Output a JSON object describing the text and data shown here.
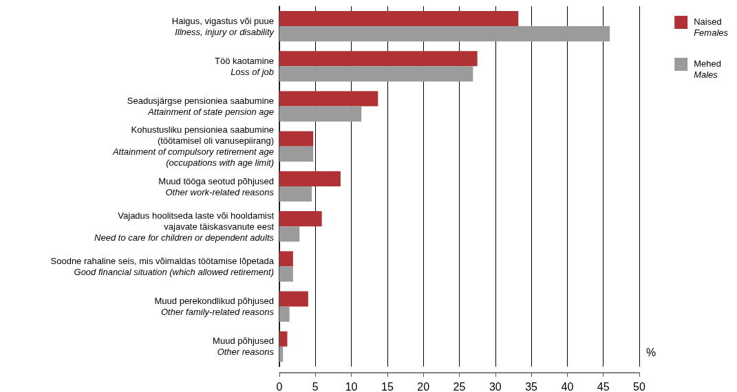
{
  "chart_data": {
    "type": "bar",
    "orientation": "horizontal",
    "xlabel": "%",
    "categories": [
      "Haigus, vigastus või puue\nIllness, injury or disability",
      "Töö kaotamine\nLoss of job",
      "Seadusjärgse pensioniea saabumine\nAttainment of state pension age",
      "Kohustusliku pensioniea saabumine\n(töötamisel oli vanusepiirang)\nAttainment of compulsory retirement age\n(occupations with age limit)",
      "Muud tööga seotud põhjused\nOther work-related reasons",
      "Vajadus hoolitseda laste või hooldamist\nvajavate täiskasvanute eest\nNeed to care for children or dependent adults",
      "Soodne rahaline seis, mis võimaldas töötamise lõpetada\nGood financial situation (which allowed retirement)",
      "Muud perekondlikud põhjused\nOther family-related reasons",
      "Muud põhjused\nOther reasons"
    ],
    "series": [
      {
        "name": "Naised\nFemales",
        "color": "#b03234",
        "values": [
          33.2,
          27.5,
          13.7,
          4.7,
          8.5,
          5.9,
          1.9,
          4.0,
          1.1
        ]
      },
      {
        "name": "Mehed\nMales",
        "color": "#9b9b9b",
        "values": [
          45.9,
          26.9,
          11.4,
          4.7,
          4.5,
          2.8,
          1.9,
          1.4,
          0.5
        ]
      }
    ],
    "xlim": [
      0,
      50
    ],
    "xticks": [
      0,
      5,
      10,
      15,
      20,
      25,
      30,
      35,
      40,
      45,
      50
    ],
    "grid": "x",
    "legend": "top right"
  }
}
